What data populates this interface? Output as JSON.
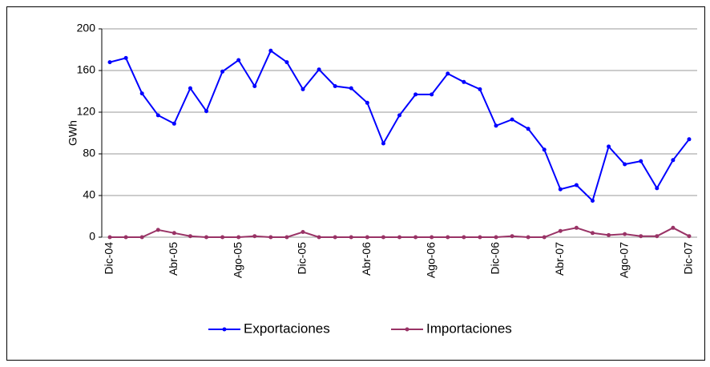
{
  "chart_data": {
    "type": "line",
    "y_label": "GWh",
    "categories": [
      "Dic-04",
      null,
      null,
      null,
      "Abr-05",
      null,
      null,
      null,
      "Ago-05",
      null,
      null,
      null,
      "Dic-05",
      null,
      null,
      null,
      "Abr-06",
      null,
      null,
      null,
      "Ago-06",
      null,
      null,
      null,
      "Dic-06",
      null,
      null,
      null,
      "Abr-07",
      null,
      null,
      null,
      "Ago-07",
      null,
      null,
      null,
      "Dic-07"
    ],
    "series": [
      {
        "name": "Exportaciones",
        "color": "#0000ff",
        "values": [
          168,
          172,
          138,
          117,
          109,
          143,
          121,
          159,
          170,
          145,
          179,
          168,
          142,
          161,
          145,
          143,
          129,
          90,
          117,
          137,
          137,
          157,
          149,
          142,
          107,
          113,
          104,
          84,
          46,
          50,
          35,
          87,
          70,
          73,
          47,
          74,
          94
        ]
      },
      {
        "name": "Importaciones",
        "color": "#993366",
        "values": [
          0,
          0,
          0,
          7,
          4,
          1,
          0,
          0,
          0,
          1,
          0,
          0,
          5,
          0,
          0,
          0,
          0,
          0,
          0,
          0,
          0,
          0,
          0,
          0,
          0,
          1,
          0,
          0,
          6,
          9,
          4,
          2,
          3,
          1,
          1,
          9,
          1
        ]
      }
    ],
    "ylim": [
      0,
      200
    ],
    "yticks": [
      0,
      40,
      80,
      120,
      160,
      200
    ],
    "grid": true,
    "legend": "bottom"
  }
}
